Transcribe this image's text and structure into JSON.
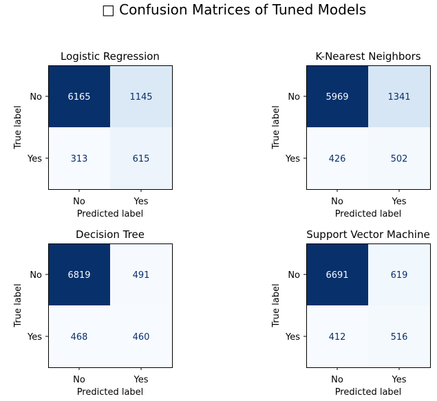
{
  "suptitle": "□ Confusion Matrices of Tuned Models",
  "chart_data": [
    {
      "type": "heatmap",
      "title": "Logistic Regression",
      "xlabel": "Predicted label",
      "ylabel": "True label",
      "x_categories": [
        "No",
        "Yes"
      ],
      "y_categories": [
        "No",
        "Yes"
      ],
      "values": [
        [
          6165,
          1145
        ],
        [
          313,
          615
        ]
      ],
      "colormap": "Blues"
    },
    {
      "type": "heatmap",
      "title": "K-Nearest Neighbors",
      "xlabel": "Predicted label",
      "ylabel": "True label",
      "x_categories": [
        "No",
        "Yes"
      ],
      "y_categories": [
        "No",
        "Yes"
      ],
      "values": [
        [
          5969,
          1341
        ],
        [
          426,
          502
        ]
      ],
      "colormap": "Blues"
    },
    {
      "type": "heatmap",
      "title": "Decision Tree",
      "xlabel": "Predicted label",
      "ylabel": "True label",
      "x_categories": [
        "No",
        "Yes"
      ],
      "y_categories": [
        "No",
        "Yes"
      ],
      "values": [
        [
          6819,
          491
        ],
        [
          468,
          460
        ]
      ],
      "colormap": "Blues"
    },
    {
      "type": "heatmap",
      "title": "Support Vector Machine",
      "xlabel": "Predicted label",
      "ylabel": "True label",
      "x_categories": [
        "No",
        "Yes"
      ],
      "y_categories": [
        "No",
        "Yes"
      ],
      "values": [
        [
          6691,
          619
        ],
        [
          412,
          516
        ]
      ],
      "colormap": "Blues"
    }
  ]
}
